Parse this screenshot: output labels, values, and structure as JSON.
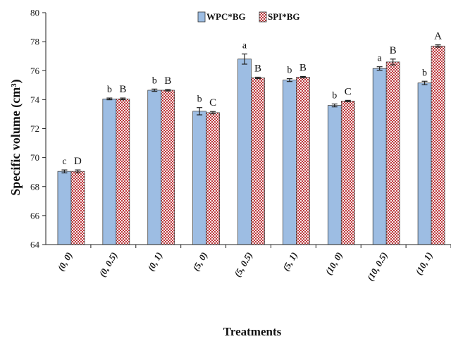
{
  "chart_data": {
    "type": "bar",
    "xlabel": "Treatments",
    "ylabel": "Specific volume (cm³)",
    "ylim": [
      64,
      80
    ],
    "yticks": [
      64,
      66,
      68,
      70,
      72,
      74,
      76,
      78,
      80
    ],
    "grid": false,
    "legend_position": "top-center",
    "categories": [
      "(0, 0)",
      "(0, 0.5)",
      "(0, 1)",
      "(5, 0)",
      "(5, 0.5)",
      "(5, 1)",
      "(10, 0)",
      "(10, 0.5)",
      "(10, 1)"
    ],
    "series": [
      {
        "name": "WPC*BG",
        "color": "#9dbde3",
        "pattern": "solid",
        "values": [
          69.05,
          74.05,
          74.65,
          73.2,
          76.8,
          75.35,
          73.6,
          76.15,
          75.15
        ],
        "errors": [
          0.1,
          0.06,
          0.08,
          0.25,
          0.35,
          0.1,
          0.1,
          0.12,
          0.12
        ],
        "sig_labels": [
          "c",
          "b",
          "b",
          "b",
          "a",
          "b",
          "b",
          "a",
          "b"
        ]
      },
      {
        "name": "SPI*BG",
        "color": "#c0383c",
        "pattern": "checker",
        "values": [
          69.05,
          74.05,
          74.65,
          73.1,
          75.5,
          75.55,
          73.9,
          76.6,
          77.7
        ],
        "errors": [
          0.1,
          0.06,
          0.05,
          0.08,
          0.05,
          0.05,
          0.05,
          0.2,
          0.08
        ],
        "sig_labels": [
          "D",
          "B",
          "B",
          "C",
          "B",
          "B",
          "C",
          "B",
          "A"
        ]
      }
    ]
  }
}
